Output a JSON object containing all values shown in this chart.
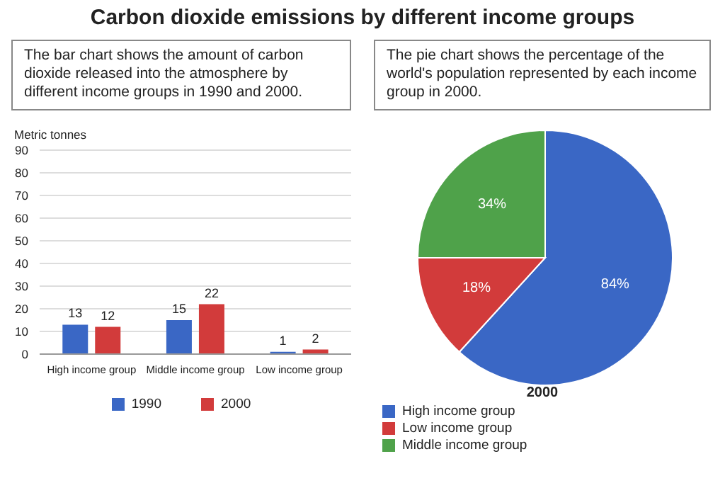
{
  "chart_data": [
    {
      "type": "bar",
      "title": "Carbon dioxide emissions by different income groups",
      "annotations": [
        "The bar chart shows the amount of carbon dioxide released into the atmosphere by different income groups in 1990 and 2000."
      ],
      "ylabel": "Metric tonnes",
      "categories": [
        "High income group",
        "Middle income group",
        "Low income group"
      ],
      "series": [
        {
          "name": "1990",
          "color": "#3a67c5",
          "values": [
            13,
            15,
            1
          ]
        },
        {
          "name": "2000",
          "color": "#d23b3b",
          "values": [
            12,
            22,
            2
          ]
        }
      ],
      "ylim": [
        0,
        90
      ],
      "yticks": [
        0,
        10,
        20,
        30,
        40,
        50,
        60,
        70,
        80,
        90
      ],
      "grid": "y",
      "data_labels": true,
      "legend": "bottom"
    },
    {
      "type": "pie",
      "title": "2000",
      "annotations": [
        "The pie chart shows the percentage of the world's population represented by each income group in 2000."
      ],
      "categories": [
        "High income group",
        "Low income group",
        "Middle income group"
      ],
      "values": [
        84,
        18,
        34
      ],
      "value_labels": [
        "84%",
        "18%",
        "34%"
      ],
      "colors": [
        "#3a67c5",
        "#d23b3b",
        "#4fa24a"
      ],
      "legend": "bottom left"
    }
  ]
}
